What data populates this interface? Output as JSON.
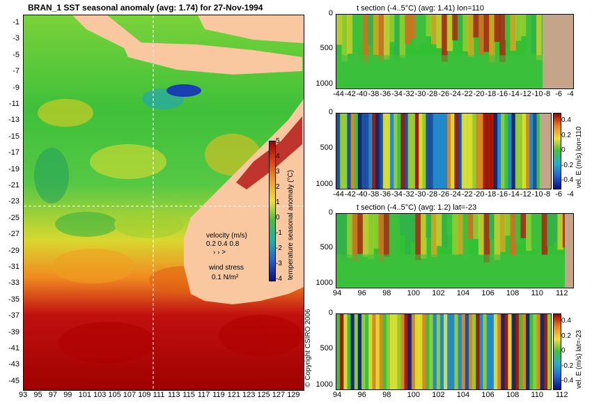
{
  "map": {
    "title": "BRAN_1 SST seasonal anomaly (avg: 1.74) for 27-Nov-1994",
    "lat_ticks": [
      "-1",
      "-3",
      "-5",
      "-7",
      "-9",
      "-11",
      "-13",
      "-15",
      "-17",
      "-19",
      "-21",
      "-23",
      "-25",
      "-27",
      "-29",
      "-31",
      "-33",
      "-35",
      "-37",
      "-39",
      "-41",
      "-43",
      "-45"
    ],
    "lon_ticks": [
      "93",
      "95",
      "97",
      "99",
      "101",
      "103",
      "105",
      "107",
      "109",
      "111",
      "113",
      "115",
      "117",
      "119",
      "121",
      "123",
      "125",
      "127",
      "129"
    ],
    "colorbar": {
      "ticks": [
        "5",
        "4",
        "3",
        "2",
        "1",
        "0",
        "-1",
        "-2",
        "-3",
        "-4"
      ],
      "label": "temperature seasonal anomaly (°C)"
    },
    "velocity_legend": {
      "title": "velocity (m/s)",
      "values": "0.2 0.4 0.8",
      "arrows": "›  ›  >"
    },
    "wind_legend": {
      "title": "wind stress",
      "value": "0.1 N/m²"
    },
    "copyright": "© Copyright CSIRO 2006"
  },
  "panels": [
    {
      "title": "t section (-4..5°C) (avg: 1.41) lon=110",
      "y_ticks": [
        "0",
        "500",
        "1000"
      ],
      "x_ticks": [
        "-44",
        "-42",
        "-40",
        "-38",
        "-36",
        "-34",
        "-32",
        "-30",
        "-28",
        "-26",
        "-24",
        "-22",
        "-20",
        "-18",
        "-16",
        "-14",
        "-12",
        "-10",
        "-8",
        "-6",
        "-4"
      ],
      "kind": "temp"
    },
    {
      "title": "",
      "y_ticks": [
        "0",
        "500",
        "1000"
      ],
      "x_ticks": [
        "-44",
        "-42",
        "-40",
        "-38",
        "-36",
        "-34",
        "-32",
        "-30",
        "-28",
        "-26",
        "-24",
        "-22",
        "-20",
        "-18",
        "-16",
        "-14",
        "-12",
        "-10",
        "-8",
        "-6",
        "-4"
      ],
      "kind": "vel",
      "colorbar_ticks": [
        "0.4",
        "0.2",
        "0",
        "-0.2",
        "-0.4"
      ],
      "colorbar_label": "vel. E (m/s) lon=110"
    },
    {
      "title": "t section (-4..5°C) (avg: 1.2) lat=-23",
      "y_ticks": [
        "0",
        "500",
        "1000"
      ],
      "x_ticks": [
        "94",
        "96",
        "98",
        "100",
        "102",
        "104",
        "106",
        "108",
        "110",
        "112"
      ],
      "kind": "temp"
    },
    {
      "title": "",
      "y_ticks": [
        "0",
        "500",
        "1000"
      ],
      "x_ticks": [
        "94",
        "96",
        "98",
        "100",
        "102",
        "104",
        "106",
        "108",
        "110",
        "112"
      ],
      "kind": "vel",
      "colorbar_ticks": [
        "0.4",
        "0.2",
        "0",
        "-0.2",
        "-0.4"
      ],
      "colorbar_label": "vel. E (m/s) lat=-23"
    }
  ],
  "colors": {
    "land": "#f9c7a0",
    "land_section": "#c4a58a",
    "warm": "#aa0000",
    "cool": "#1a3fb0",
    "mid": "#33c033",
    "yellow": "#f0e020"
  }
}
